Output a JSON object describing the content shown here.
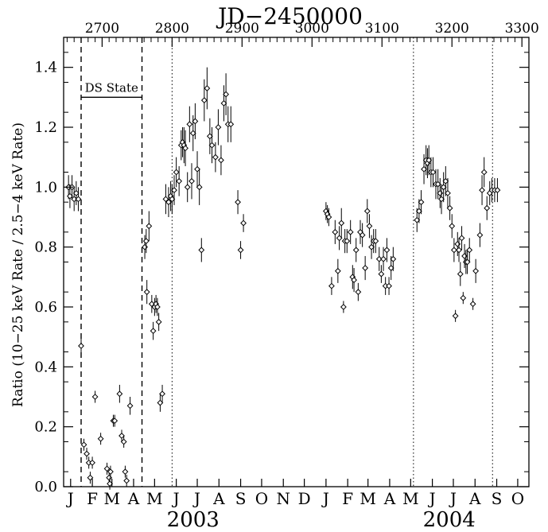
{
  "chart_data": {
    "type": "scatter",
    "title": "JD−2450000",
    "xlabel": "",
    "ylabel": "Ratio (10−25 keV Rate / 2.5−4 keV Rate)",
    "x_axis": "JD−2450000",
    "xlim": [
      2645,
      3310
    ],
    "ylim": [
      0.0,
      1.5
    ],
    "top_ticks": [
      2700,
      2800,
      2900,
      3000,
      3100,
      3200,
      3300
    ],
    "y_ticks": [
      "0.0",
      "0.2",
      "0.4",
      "0.6",
      "0.8",
      "1.0",
      "1.2",
      "1.4"
    ],
    "month_labels": [
      {
        "label": "J",
        "jd": 2655
      },
      {
        "label": "F",
        "jd": 2686
      },
      {
        "label": "M",
        "jd": 2714
      },
      {
        "label": "A",
        "jd": 2745
      },
      {
        "label": "M",
        "jd": 2775
      },
      {
        "label": "J",
        "jd": 2806
      },
      {
        "label": "J",
        "jd": 2836
      },
      {
        "label": "A",
        "jd": 2867
      },
      {
        "label": "S",
        "jd": 2898
      },
      {
        "label": "O",
        "jd": 2928
      },
      {
        "label": "N",
        "jd": 2959
      },
      {
        "label": "D",
        "jd": 2989
      },
      {
        "label": "J",
        "jd": 3020
      },
      {
        "label": "F",
        "jd": 3051
      },
      {
        "label": "M",
        "jd": 3080
      },
      {
        "label": "A",
        "jd": 3111
      },
      {
        "label": "M",
        "jd": 3141
      },
      {
        "label": "J",
        "jd": 3172
      },
      {
        "label": "J",
        "jd": 3202
      },
      {
        "label": "A",
        "jd": 3233
      },
      {
        "label": "S",
        "jd": 3264
      },
      {
        "label": "O",
        "jd": 3294
      }
    ],
    "year_labels": [
      {
        "label": "2003",
        "jd": 2830
      },
      {
        "label": "2004",
        "jd": 3196
      }
    ],
    "dashed_lines": [
      2670,
      2757
    ],
    "dotted_lines": [
      2800,
      3145,
      3258
    ],
    "annotation": {
      "text": "DS State",
      "x1": 2670,
      "x2": 2757,
      "y": 1.3
    },
    "points": [
      [
        2652,
        1.0,
        0.04
      ],
      [
        2654,
        0.97,
        0.04
      ],
      [
        2657,
        1.0,
        0.04
      ],
      [
        2660,
        0.96,
        0.04
      ],
      [
        2663,
        0.98,
        0.04
      ],
      [
        2666,
        0.96,
        0.04
      ],
      [
        2670,
        0.47,
        0.03
      ],
      [
        2674,
        0.14,
        0.02
      ],
      [
        2678,
        0.11,
        0.02
      ],
      [
        2681,
        0.08,
        0.02
      ],
      [
        2683,
        0.03,
        0.02
      ],
      [
        2686,
        0.08,
        0.02
      ],
      [
        2690,
        0.3,
        0.02
      ],
      [
        2698,
        0.16,
        0.02
      ],
      [
        2707,
        0.06,
        0.02
      ],
      [
        2710,
        0.03,
        0.02
      ],
      [
        2711,
        0.01,
        0.02
      ],
      [
        2712,
        0.05,
        0.02
      ],
      [
        2716,
        0.22,
        0.02
      ],
      [
        2718,
        0.22,
        0.02
      ],
      [
        2725,
        0.31,
        0.03
      ],
      [
        2728,
        0.17,
        0.02
      ],
      [
        2731,
        0.15,
        0.02
      ],
      [
        2733,
        0.05,
        0.02
      ],
      [
        2735,
        0.02,
        0.02
      ],
      [
        2740,
        0.27,
        0.03
      ],
      [
        2761,
        0.8,
        0.04
      ],
      [
        2763,
        0.82,
        0.04
      ],
      [
        2764,
        0.65,
        0.04
      ],
      [
        2767,
        0.87,
        0.05
      ],
      [
        2771,
        0.61,
        0.03
      ],
      [
        2773,
        0.52,
        0.03
      ],
      [
        2775,
        0.6,
        0.03
      ],
      [
        2777,
        0.61,
        0.03
      ],
      [
        2779,
        0.6,
        0.03
      ],
      [
        2781,
        0.55,
        0.03
      ],
      [
        2783,
        0.28,
        0.03
      ],
      [
        2786,
        0.31,
        0.03
      ],
      [
        2791,
        0.96,
        0.05
      ],
      [
        2795,
        0.95,
        0.05
      ],
      [
        2798,
        0.97,
        0.05
      ],
      [
        2800,
        0.96,
        0.05
      ],
      [
        2803,
        0.99,
        0.05
      ],
      [
        2806,
        1.05,
        0.05
      ],
      [
        2810,
        1.02,
        0.05
      ],
      [
        2813,
        1.14,
        0.05
      ],
      [
        2815,
        1.15,
        0.05
      ],
      [
        2817,
        1.14,
        0.06
      ],
      [
        2819,
        1.13,
        0.06
      ],
      [
        2822,
        1.0,
        0.05
      ],
      [
        2825,
        1.21,
        0.06
      ],
      [
        2828,
        1.02,
        0.06
      ],
      [
        2830,
        1.18,
        0.06
      ],
      [
        2833,
        1.22,
        0.06
      ],
      [
        2836,
        1.06,
        0.06
      ],
      [
        2839,
        1.0,
        0.06
      ],
      [
        2842,
        0.79,
        0.04
      ],
      [
        2846,
        1.29,
        0.07
      ],
      [
        2850,
        1.33,
        0.07
      ],
      [
        2854,
        1.17,
        0.06
      ],
      [
        2857,
        1.14,
        0.06
      ],
      [
        2862,
        1.1,
        0.05
      ],
      [
        2866,
        1.2,
        0.06
      ],
      [
        2870,
        1.09,
        0.05
      ],
      [
        2874,
        1.28,
        0.06
      ],
      [
        2877,
        1.31,
        0.07
      ],
      [
        2880,
        1.21,
        0.06
      ],
      [
        2884,
        1.21,
        0.06
      ],
      [
        2894,
        0.95,
        0.04
      ],
      [
        2898,
        0.79,
        0.03
      ],
      [
        2902,
        0.88,
        0.03
      ],
      [
        3020,
        0.92,
        0.03
      ],
      [
        3022,
        0.91,
        0.03
      ],
      [
        3024,
        0.9,
        0.03
      ],
      [
        3028,
        0.67,
        0.03
      ],
      [
        3033,
        0.85,
        0.04
      ],
      [
        3037,
        0.72,
        0.04
      ],
      [
        3039,
        0.83,
        0.04
      ],
      [
        3042,
        0.88,
        0.05
      ],
      [
        3045,
        0.6,
        0.02
      ],
      [
        3047,
        0.82,
        0.04
      ],
      [
        3050,
        0.82,
        0.04
      ],
      [
        3055,
        0.85,
        0.04
      ],
      [
        3058,
        0.7,
        0.04
      ],
      [
        3060,
        0.69,
        0.04
      ],
      [
        3063,
        0.79,
        0.04
      ],
      [
        3066,
        0.65,
        0.03
      ],
      [
        3069,
        0.85,
        0.04
      ],
      [
        3072,
        0.84,
        0.04
      ],
      [
        3076,
        0.73,
        0.04
      ],
      [
        3079,
        0.92,
        0.04
      ],
      [
        3082,
        0.87,
        0.04
      ],
      [
        3085,
        0.8,
        0.04
      ],
      [
        3088,
        0.82,
        0.04
      ],
      [
        3091,
        0.82,
        0.04
      ],
      [
        3096,
        0.76,
        0.04
      ],
      [
        3099,
        0.71,
        0.03
      ],
      [
        3102,
        0.76,
        0.04
      ],
      [
        3105,
        0.67,
        0.03
      ],
      [
        3107,
        0.79,
        0.04
      ],
      [
        3110,
        0.67,
        0.03
      ],
      [
        3113,
        0.73,
        0.04
      ],
      [
        3116,
        0.76,
        0.04
      ],
      [
        3150,
        0.89,
        0.04
      ],
      [
        3153,
        0.92,
        0.04
      ],
      [
        3156,
        0.95,
        0.04
      ],
      [
        3160,
        1.06,
        0.05
      ],
      [
        3163,
        1.09,
        0.05
      ],
      [
        3165,
        1.08,
        0.05
      ],
      [
        3167,
        1.09,
        0.05
      ],
      [
        3170,
        1.05,
        0.05
      ],
      [
        3173,
        1.05,
        0.05
      ],
      [
        3177,
        1.01,
        0.05
      ],
      [
        3180,
        1.01,
        0.05
      ],
      [
        3183,
        0.98,
        0.05
      ],
      [
        3185,
        0.96,
        0.05
      ],
      [
        3188,
        1.0,
        0.05
      ],
      [
        3191,
        1.02,
        0.05
      ],
      [
        3194,
        0.98,
        0.05
      ],
      [
        3197,
        0.93,
        0.04
      ],
      [
        3200,
        0.87,
        0.04
      ],
      [
        3203,
        0.79,
        0.04
      ],
      [
        3205,
        0.57,
        0.02
      ],
      [
        3208,
        0.81,
        0.04
      ],
      [
        3210,
        0.79,
        0.04
      ],
      [
        3212,
        0.71,
        0.04
      ],
      [
        3214,
        0.83,
        0.04
      ],
      [
        3216,
        0.63,
        0.02
      ],
      [
        3218,
        0.77,
        0.04
      ],
      [
        3220,
        0.75,
        0.04
      ],
      [
        3222,
        0.75,
        0.04
      ],
      [
        3225,
        0.79,
        0.04
      ],
      [
        3230,
        0.61,
        0.02
      ],
      [
        3234,
        0.72,
        0.04
      ],
      [
        3240,
        0.84,
        0.04
      ],
      [
        3243,
        0.99,
        0.05
      ],
      [
        3246,
        1.05,
        0.05
      ],
      [
        3250,
        0.93,
        0.04
      ],
      [
        3254,
        0.98,
        0.04
      ],
      [
        3257,
        0.99,
        0.04
      ],
      [
        3261,
        0.99,
        0.04
      ],
      [
        3265,
        0.99,
        0.04
      ]
    ]
  }
}
